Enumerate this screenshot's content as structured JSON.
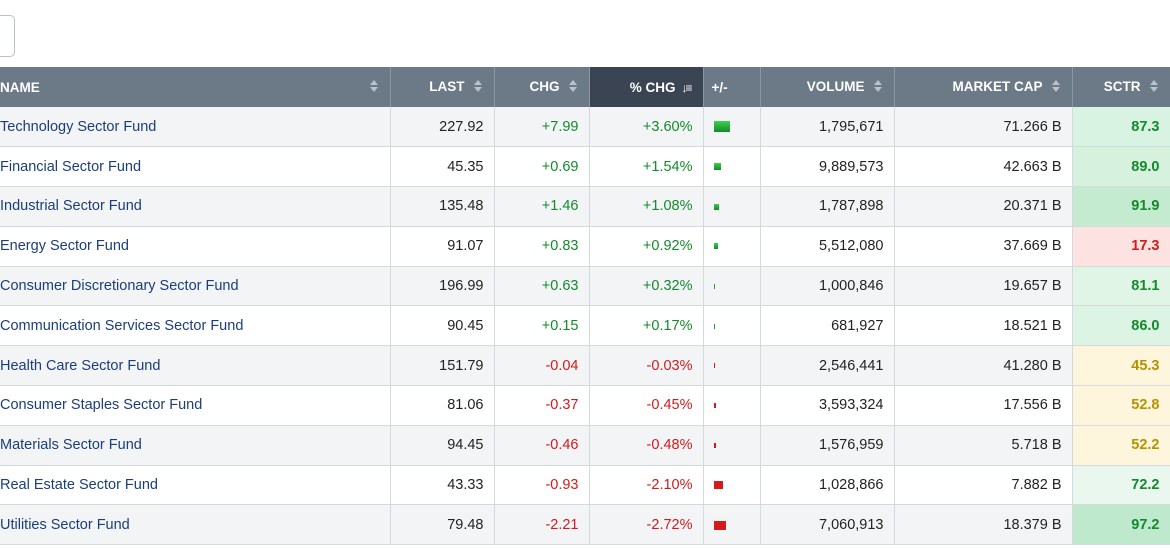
{
  "columns": {
    "name": "NAME",
    "last": "LAST",
    "chg": "CHG",
    "pctchg": "% CHG",
    "plusminus": "+/-",
    "volume": "VOLUME",
    "marketcap": "MARKET CAP",
    "sctr": "SCTR"
  },
  "sort": {
    "column": "% CHG",
    "direction": "descending"
  },
  "colors": {
    "header": "#6c7a88",
    "header_active": "#3b4452",
    "positive": "#138a2b",
    "negative": "#d41a1a",
    "name_link": "#1b3e7a"
  },
  "rows": [
    {
      "name": "Technology Sector Fund",
      "last": "227.92",
      "chg": "+7.99",
      "pct": "+3.60%",
      "pct_value": 3.6,
      "volume": "1,795,671",
      "mcap": "71.266 B",
      "sctr": "87.3",
      "sctr_bg": "#d9f3e2",
      "sctr_color": "#138a2b"
    },
    {
      "name": "Financial Sector Fund",
      "last": "45.35",
      "chg": "+0.69",
      "pct": "+1.54%",
      "pct_value": 1.54,
      "volume": "9,889,573",
      "mcap": "42.663 B",
      "sctr": "89.0",
      "sctr_bg": "#d6f2df",
      "sctr_color": "#138a2b"
    },
    {
      "name": "Industrial Sector Fund",
      "last": "135.48",
      "chg": "+1.46",
      "pct": "+1.08%",
      "pct_value": 1.08,
      "volume": "1,787,898",
      "mcap": "20.371 B",
      "sctr": "91.9",
      "sctr_bg": "#c4ebd0",
      "sctr_color": "#138a2b"
    },
    {
      "name": "Energy Sector Fund",
      "last": "91.07",
      "chg": "+0.83",
      "pct": "+0.92%",
      "pct_value": 0.92,
      "volume": "5,512,080",
      "mcap": "37.669 B",
      "sctr": "17.3",
      "sctr_bg": "#fde2e2",
      "sctr_color": "#d41a1a"
    },
    {
      "name": "Consumer Discretionary Sector Fund",
      "last": "196.99",
      "chg": "+0.63",
      "pct": "+0.32%",
      "pct_value": 0.32,
      "volume": "1,000,846",
      "mcap": "19.657 B",
      "sctr": "81.1",
      "sctr_bg": "#e1f5e7",
      "sctr_color": "#138a2b"
    },
    {
      "name": "Communication Services Sector Fund",
      "last": "90.45",
      "chg": "+0.15",
      "pct": "+0.17%",
      "pct_value": 0.17,
      "volume": "681,927",
      "mcap": "18.521 B",
      "sctr": "86.0",
      "sctr_bg": "#dcf4e4",
      "sctr_color": "#138a2b"
    },
    {
      "name": "Health Care Sector Fund",
      "last": "151.79",
      "chg": "-0.04",
      "pct": "-0.03%",
      "pct_value": -0.03,
      "volume": "2,546,441",
      "mcap": "41.280 B",
      "sctr": "45.3",
      "sctr_bg": "#fdf6dc",
      "sctr_color": "#b59200"
    },
    {
      "name": "Consumer Staples Sector Fund",
      "last": "81.06",
      "chg": "-0.37",
      "pct": "-0.45%",
      "pct_value": -0.45,
      "volume": "3,593,324",
      "mcap": "17.556 B",
      "sctr": "52.8",
      "sctr_bg": "#fdf6dc",
      "sctr_color": "#b59200"
    },
    {
      "name": "Materials Sector Fund",
      "last": "94.45",
      "chg": "-0.46",
      "pct": "-0.48%",
      "pct_value": -0.48,
      "volume": "1,576,959",
      "mcap": "5.718 B",
      "sctr": "52.2",
      "sctr_bg": "#fdf6dc",
      "sctr_color": "#b59200"
    },
    {
      "name": "Real Estate Sector Fund",
      "last": "43.33",
      "chg": "-0.93",
      "pct": "-2.10%",
      "pct_value": -2.1,
      "volume": "1,028,866",
      "mcap": "7.882 B",
      "sctr": "72.2",
      "sctr_bg": "#e9f7ee",
      "sctr_color": "#138a2b"
    },
    {
      "name": "Utilities Sector Fund",
      "last": "79.48",
      "chg": "-2.21",
      "pct": "-2.72%",
      "pct_value": -2.72,
      "volume": "7,060,913",
      "mcap": "18.379 B",
      "sctr": "97.2",
      "sctr_bg": "#bfe9cc",
      "sctr_color": "#138a2b"
    }
  ]
}
